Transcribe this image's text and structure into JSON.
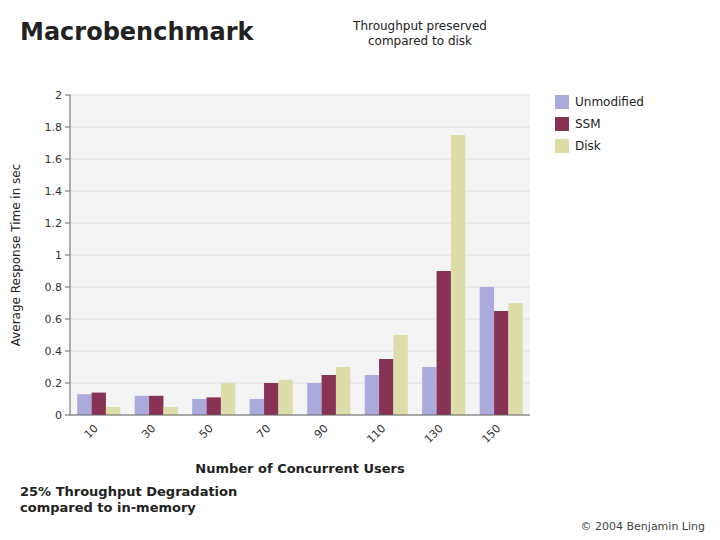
{
  "chart_data": {
    "type": "bar",
    "title": "Macrobenchmark",
    "xlabel": "Number of Concurrent Users",
    "ylabel": "Average Response Time in sec",
    "annotations": [
      "Throughput preserved\ncompared to disk",
      "25% Throughput Degradation\ncompared to in-memory",
      "© 2004 Benjamin Ling"
    ],
    "categories": [
      10,
      30,
      50,
      70,
      90,
      110,
      130,
      150
    ],
    "series": [
      {
        "name": "Unmodified",
        "color": "#aaaadd",
        "values": [
          0.13,
          0.12,
          0.1,
          0.1,
          0.2,
          0.25,
          0.3,
          0.8
        ]
      },
      {
        "name": "SSM",
        "color": "#883355",
        "values": [
          0.14,
          0.12,
          0.11,
          0.2,
          0.25,
          0.35,
          0.9,
          0.65
        ]
      },
      {
        "name": "Disk",
        "color": "#ddddaa",
        "values": [
          0.05,
          0.05,
          0.2,
          0.22,
          0.3,
          0.5,
          1.75,
          0.7
        ]
      }
    ],
    "ylim": [
      0,
      2.0
    ],
    "yticks": [
      0,
      0.2,
      0.4,
      0.6,
      0.8,
      1.0,
      1.2,
      1.4,
      1.6,
      1.8,
      2.0
    ],
    "grid": true,
    "legend": "right"
  }
}
